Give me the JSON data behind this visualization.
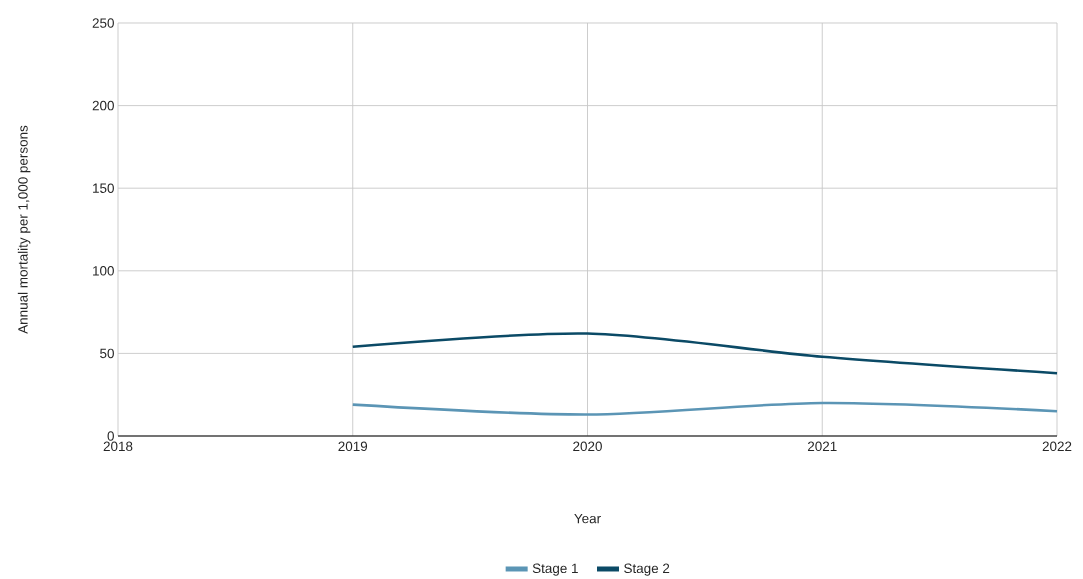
{
  "chart_data": {
    "type": "line",
    "xlabel": "Year",
    "ylabel": "Annual mortality per 1,000 persons",
    "x": [
      2019,
      2020,
      2021,
      2022
    ],
    "series": [
      {
        "name": "Stage 1",
        "color": "#5b95b5",
        "values": [
          19,
          13,
          20,
          15
        ]
      },
      {
        "name": "Stage 2",
        "color": "#0b4a66",
        "values": [
          54,
          62,
          48,
          38
        ]
      }
    ],
    "xlim": [
      2018,
      2022
    ],
    "ylim": [
      0,
      250
    ],
    "xticks": [
      2018,
      2019,
      2020,
      2021,
      2022
    ],
    "yticks": [
      0,
      50,
      100,
      150,
      200,
      250
    ],
    "grid": true,
    "legend": "bottom"
  }
}
